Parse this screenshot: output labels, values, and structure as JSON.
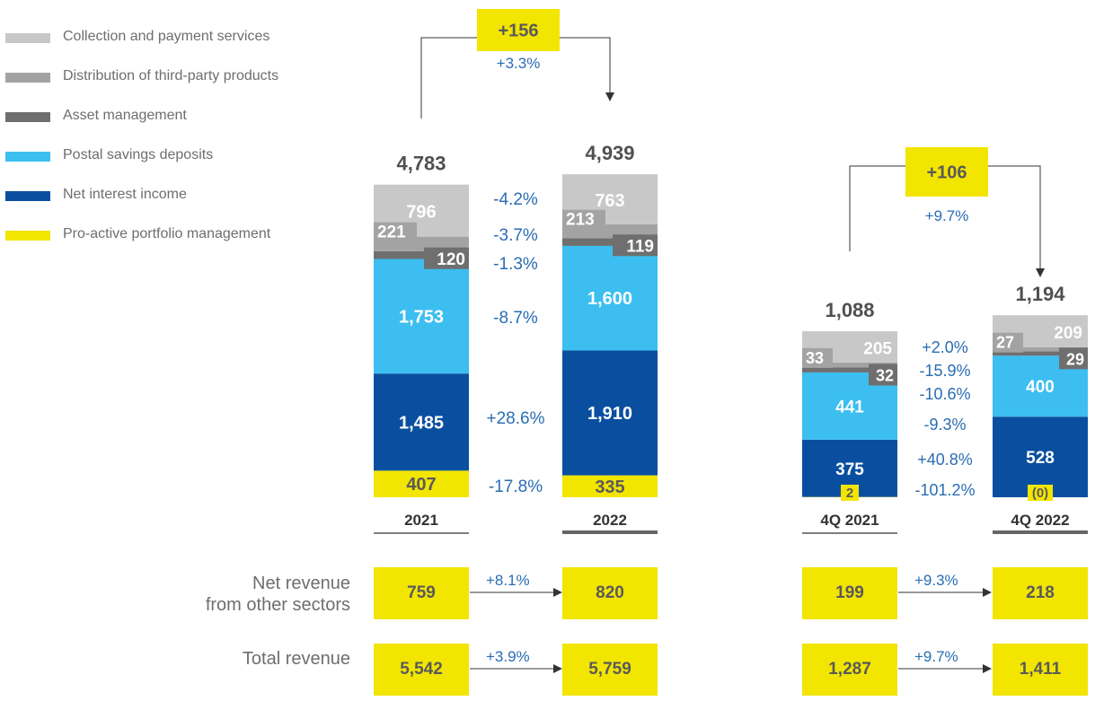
{
  "legend": [
    {
      "label": "Collection and payment services",
      "color": "#c8c8c8"
    },
    {
      "label": "Distribution of third-party products",
      "color": "#a3a3a3"
    },
    {
      "label": "Asset management",
      "color": "#6f6f6f"
    },
    {
      "label": "Postal savings deposits",
      "color": "#3cbef0"
    },
    {
      "label": "Net interest income",
      "color": "#0a4f9f"
    },
    {
      "label": "Pro-active portfolio management",
      "color": "#f2e500"
    }
  ],
  "chart_data": [
    {
      "type": "bar",
      "stacked": true,
      "categories": [
        "2021",
        "2022"
      ],
      "totals": [
        "4,783",
        "4,939"
      ],
      "series": [
        {
          "name": "Pro-active portfolio management",
          "values": [
            407,
            335
          ],
          "labels": [
            "407",
            "335"
          ],
          "change": "-17.8%"
        },
        {
          "name": "Net interest income",
          "values": [
            1485,
            1910
          ],
          "labels": [
            "1,485",
            "1,910"
          ],
          "change": "+28.6%"
        },
        {
          "name": "Postal savings deposits",
          "values": [
            1753,
            1600
          ],
          "labels": [
            "1,753",
            "1,600"
          ],
          "change": "-8.7%"
        },
        {
          "name": "Asset management",
          "values": [
            120,
            119
          ],
          "labels": [
            "120",
            "119"
          ],
          "change": "-1.3%"
        },
        {
          "name": "Distribution of third-party products",
          "values": [
            221,
            213
          ],
          "labels": [
            "221",
            "213"
          ],
          "change": "-3.7%"
        },
        {
          "name": "Collection and payment services",
          "values": [
            796,
            763
          ],
          "labels": [
            "796",
            "763"
          ],
          "change": "-4.2%"
        }
      ],
      "delta": {
        "value": "+156",
        "percent": "+3.3%"
      }
    },
    {
      "type": "bar",
      "stacked": true,
      "categories": [
        "4Q 2021",
        "4Q 2022"
      ],
      "totals": [
        "1,088",
        "1,194"
      ],
      "series": [
        {
          "name": "Pro-active portfolio management",
          "values": [
            2,
            0
          ],
          "labels": [
            "2",
            "(0)"
          ],
          "change": "-101.2%"
        },
        {
          "name": "Net interest income",
          "values": [
            375,
            528
          ],
          "labels": [
            "375",
            "528"
          ],
          "change": "+40.8%"
        },
        {
          "name": "Postal savings deposits",
          "values": [
            441,
            400
          ],
          "labels": [
            "441",
            "400"
          ],
          "change": "-9.3%"
        },
        {
          "name": "Asset management",
          "values": [
            32,
            29
          ],
          "labels": [
            "32",
            "29"
          ],
          "change": "-10.6%"
        },
        {
          "name": "Distribution of third-party products",
          "values": [
            33,
            27
          ],
          "labels": [
            "33",
            "27"
          ],
          "change": "-15.9%"
        },
        {
          "name": "Collection and payment services",
          "values": [
            205,
            209
          ],
          "labels": [
            "205",
            "209"
          ],
          "change": "+2.0%"
        }
      ],
      "delta": {
        "value": "+106",
        "percent": "+9.7%"
      }
    }
  ],
  "summary_rows": [
    {
      "label_line1": "Net revenue",
      "label_line2": "from other sectors",
      "annual": {
        "from": "759",
        "to": "820",
        "percent": "+8.1%"
      },
      "quarterly": {
        "from": "199",
        "to": "218",
        "percent": "+9.3%"
      }
    },
    {
      "label_line1": "Total revenue",
      "label_line2": "",
      "annual": {
        "from": "5,542",
        "to": "5,759",
        "percent": "+3.9%"
      },
      "quarterly": {
        "from": "1,287",
        "to": "1,411",
        "percent": "+9.7%"
      }
    }
  ],
  "colors": {
    "pct_text": "#2a6db3",
    "total_text": "#505050",
    "box_yellow": "#f2e500",
    "arrow": "#333333"
  }
}
